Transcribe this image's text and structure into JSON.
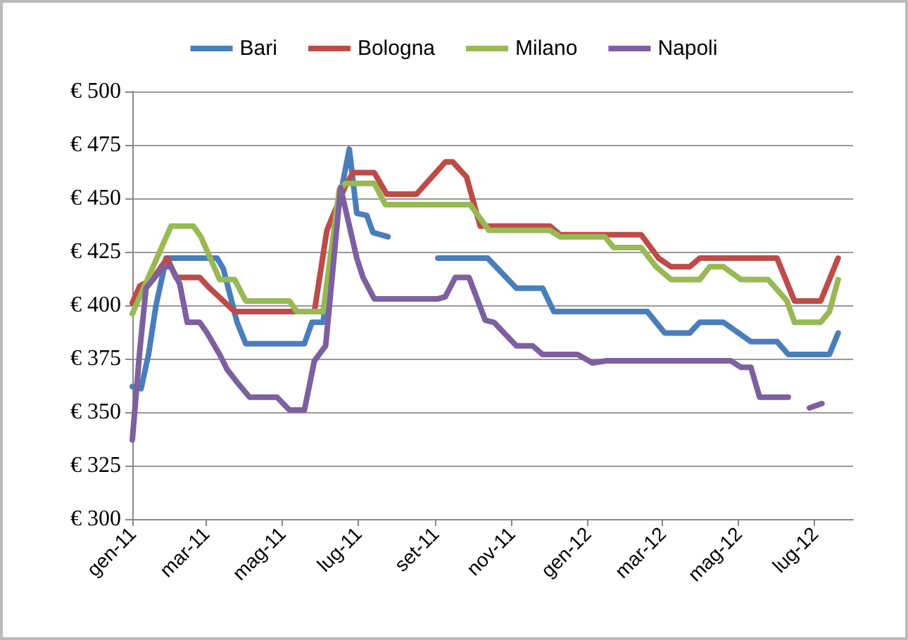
{
  "chart_data": {
    "type": "line",
    "legend": "top",
    "grid": "y",
    "marker": "none",
    "line_style": "solid",
    "xlim": [
      "2011-01-01",
      "2012-08-01"
    ],
    "xticks": [
      {
        "value": "2011-01-01",
        "label": "gen-11"
      },
      {
        "value": "2011-03-01",
        "label": "mar-11"
      },
      {
        "value": "2011-05-01",
        "label": "mag-11"
      },
      {
        "value": "2011-07-01",
        "label": "lug-11"
      },
      {
        "value": "2011-09-01",
        "label": "set-11"
      },
      {
        "value": "2011-11-01",
        "label": "nov-11"
      },
      {
        "value": "2012-01-01",
        "label": "gen-12"
      },
      {
        "value": "2012-03-01",
        "label": "mar-12"
      },
      {
        "value": "2012-05-01",
        "label": "mag-12"
      },
      {
        "value": "2012-07-01",
        "label": "lug-12"
      }
    ],
    "ylim": [
      300,
      500
    ],
    "yticks": [
      {
        "value": 300,
        "label": "€ 300"
      },
      {
        "value": 325,
        "label": "€ 325"
      },
      {
        "value": 350,
        "label": "€ 350"
      },
      {
        "value": 375,
        "label": "€ 375"
      },
      {
        "value": 400,
        "label": "€ 400"
      },
      {
        "value": 425,
        "label": "€ 425"
      },
      {
        "value": 450,
        "label": "€ 450"
      },
      {
        "value": 475,
        "label": "€ 475"
      },
      {
        "value": 500,
        "label": "€ 500"
      }
    ],
    "series": [
      {
        "name": "Bari",
        "color": "#4a7ebb",
        "x": [
          "2011-01-01",
          "2011-01-08",
          "2011-01-14",
          "2011-01-20",
          "2011-01-26",
          "2011-01-28",
          "2011-03-10",
          "2011-03-15",
          "2011-03-26",
          "2011-04-02",
          "2011-05-19",
          "2011-05-25",
          "2011-06-03",
          "2011-06-14",
          "2011-06-24",
          "2011-06-30",
          "2011-07-08",
          "2011-07-13",
          "2011-07-25",
          "2011-08-15",
          "2011-09-03",
          "2011-10-13",
          "2011-11-05",
          "2011-11-26",
          "2011-12-05",
          "2012-02-18",
          "2012-03-03",
          "2012-03-23",
          "2012-03-31",
          "2012-04-19",
          "2012-05-11",
          "2012-06-01",
          "2012-06-10",
          "2012-07-13",
          "2012-07-20"
        ],
        "values": [
          362,
          361,
          377,
          400,
          416,
          422,
          422,
          417,
          392,
          382,
          382,
          392,
          392,
          443,
          473,
          443,
          442,
          434,
          432,
          null,
          422,
          422,
          408,
          408,
          397,
          397,
          387,
          387,
          392,
          392,
          383,
          383,
          377,
          377,
          387
        ]
      },
      {
        "name": "Bologna",
        "color": "#be4b48",
        "x": [
          "2011-01-01",
          "2011-01-07",
          "2011-01-17",
          "2011-01-29",
          "2011-02-05",
          "2011-02-24",
          "2011-03-04",
          "2011-03-15",
          "2011-03-24",
          "2011-05-27",
          "2011-06-06",
          "2011-06-21",
          "2011-06-27",
          "2011-07-14",
          "2011-07-24",
          "2011-08-17",
          "2011-09-09",
          "2011-09-15",
          "2011-09-26",
          "2011-10-07",
          "2011-12-02",
          "2011-12-10",
          "2012-02-13",
          "2012-02-27",
          "2012-03-08",
          "2012-03-23",
          "2012-03-31",
          "2012-06-01",
          "2012-06-15",
          "2012-07-06",
          "2012-07-20"
        ],
        "values": [
          401,
          409,
          412,
          422,
          413,
          413,
          408,
          402,
          397,
          397,
          435,
          456,
          462,
          462,
          452,
          452,
          467,
          467,
          460,
          437,
          437,
          433,
          433,
          422,
          418,
          418,
          422,
          422,
          402,
          402,
          422
        ]
      },
      {
        "name": "Milano",
        "color": "#98b954",
        "x": [
          "2011-01-01",
          "2011-02-01",
          "2011-02-19",
          "2011-02-25",
          "2011-03-12",
          "2011-03-24",
          "2011-04-02",
          "2011-05-07",
          "2011-05-13",
          "2011-06-03",
          "2011-06-16",
          "2011-06-21",
          "2011-07-14",
          "2011-07-23",
          "2011-09-29",
          "2011-10-14",
          "2011-12-02",
          "2011-12-10",
          "2012-01-15",
          "2012-01-22",
          "2012-02-13",
          "2012-02-25",
          "2012-03-08",
          "2012-03-31",
          "2012-04-08",
          "2012-04-19",
          "2012-05-03",
          "2012-05-25",
          "2012-06-09",
          "2012-06-15",
          "2012-07-06",
          "2012-07-13",
          "2012-07-20"
        ],
        "values": [
          396,
          437,
          437,
          432,
          412,
          412,
          402,
          402,
          397,
          397,
          454,
          457,
          457,
          447,
          447,
          435,
          435,
          432,
          432,
          427,
          427,
          418,
          412,
          412,
          418,
          418,
          412,
          412,
          402,
          392,
          392,
          397,
          412
        ]
      },
      {
        "name": "Napoli",
        "color": "#7d60a0",
        "x": [
          "2011-01-01",
          "2011-01-07",
          "2011-01-12",
          "2011-01-26",
          "2011-02-01",
          "2011-02-08",
          "2011-02-14",
          "2011-02-24",
          "2011-03-02",
          "2011-03-12",
          "2011-03-18",
          "2011-03-26",
          "2011-04-05",
          "2011-04-27",
          "2011-05-07",
          "2011-05-19",
          "2011-05-27",
          "2011-06-05",
          "2011-06-17",
          "2011-06-30",
          "2011-07-05",
          "2011-07-14",
          "2011-09-03",
          "2011-09-09",
          "2011-09-17",
          "2011-09-28",
          "2011-10-11",
          "2011-10-18",
          "2011-11-05",
          "2011-11-18",
          "2011-11-26",
          "2011-12-24",
          "2012-01-05",
          "2012-01-16",
          "2012-04-25",
          "2012-05-03",
          "2012-05-11",
          "2012-05-18",
          "2012-06-10",
          "2012-06-20",
          "2012-06-27",
          "2012-07-07"
        ],
        "values": [
          337,
          379,
          408,
          418,
          418,
          410,
          392,
          392,
          387,
          377,
          370,
          364,
          357,
          357,
          351,
          351,
          374,
          381,
          455,
          422,
          413,
          403,
          403,
          404,
          413,
          413,
          393,
          392,
          381,
          381,
          377,
          377,
          373,
          374,
          374,
          371,
          371,
          357,
          357,
          null,
          352,
          354
        ]
      }
    ]
  }
}
